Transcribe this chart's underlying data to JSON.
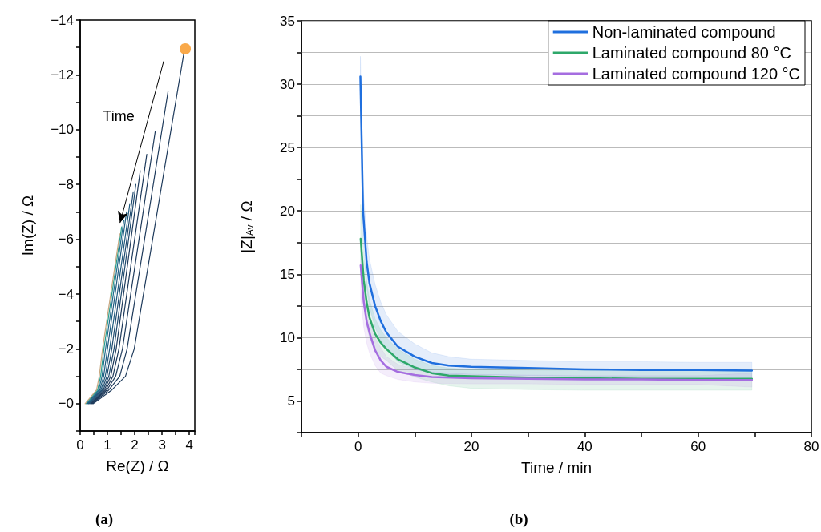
{
  "chart_data": [
    {
      "type": "line",
      "title": "(a)",
      "xlabel": "Re(Z) / Ω",
      "ylabel": "Im(Z) / Ω",
      "xlim": [
        0,
        4.2
      ],
      "ylim": [
        1,
        -14
      ],
      "xticks": [
        0,
        {
          "value": 0.5,
          "label": null
        },
        1,
        {
          "value": 1.5,
          "label": null
        },
        2,
        {
          "value": 2.5,
          "label": null
        },
        3,
        {
          "value": 3.5,
          "label": null
        },
        4
      ],
      "yticks": [
        {
          "value": -14,
          "label": "−14"
        },
        {
          "value": -13,
          "label": null
        },
        {
          "value": -12,
          "label": "−12"
        },
        {
          "value": -11,
          "label": null
        },
        {
          "value": -10,
          "label": "−10"
        },
        {
          "value": -9,
          "label": null
        },
        {
          "value": -8,
          "label": "−8"
        },
        {
          "value": -7,
          "label": null
        },
        {
          "value": -6,
          "label": "−6"
        },
        {
          "value": -5,
          "label": null
        },
        {
          "value": -4,
          "label": "−4"
        },
        {
          "value": -3,
          "label": null
        },
        {
          "value": -2,
          "label": "−2"
        },
        {
          "value": -1,
          "label": null
        },
        {
          "value": 0,
          "label": "−0"
        },
        {
          "value": 1,
          "label": null
        }
      ],
      "grid": false,
      "legend": false,
      "marker": "none",
      "line_style": "solid",
      "annotations": [
        "Time"
      ],
      "series": [
        {
          "color": "#1f3b5c",
          "x": [
            0.48,
            1.16,
            1.66,
            1.98,
            3.8
          ],
          "values": [
            0,
            -0.5,
            -1,
            -2,
            -12.8
          ]
        },
        {
          "color": "#1f3b5c",
          "x": [
            0.45,
            1.05,
            1.45,
            1.72,
            3.22
          ],
          "values": [
            0,
            -0.5,
            -1,
            -2,
            -11.4
          ]
        },
        {
          "color": "#1f3b5c",
          "x": [
            0.42,
            0.98,
            1.3,
            1.55,
            2.75
          ],
          "values": [
            0,
            -0.5,
            -1,
            -2,
            -9.94
          ]
        },
        {
          "color": "#1f3b5c",
          "x": [
            0.4,
            0.93,
            1.2,
            1.42,
            2.44
          ],
          "values": [
            0,
            -0.5,
            -1,
            -2,
            -9.1
          ]
        },
        {
          "color": "#1f3b5c",
          "x": [
            0.38,
            0.88,
            1.12,
            1.32,
            2.2
          ],
          "values": [
            0,
            -0.5,
            -1,
            -2,
            -8.5
          ]
        },
        {
          "color": "#1f4a6e",
          "x": [
            0.35,
            0.84,
            1.05,
            1.24,
            2.04
          ],
          "values": [
            0,
            -0.5,
            -1,
            -2,
            -8.0
          ]
        },
        {
          "color": "#1f4a6e",
          "x": [
            0.32,
            0.8,
            0.98,
            1.16,
            1.94
          ],
          "values": [
            0,
            -0.5,
            -1,
            -2,
            -7.7
          ]
        },
        {
          "color": "#1f5a7e",
          "x": [
            0.3,
            0.76,
            0.92,
            1.08,
            1.82
          ],
          "values": [
            0,
            -0.5,
            -1,
            -2,
            -7.3
          ]
        },
        {
          "color": "#1f5a7e",
          "x": [
            0.27,
            0.72,
            0.86,
            1.0,
            1.7
          ],
          "values": [
            0,
            -0.5,
            -1,
            -2,
            -7.0
          ]
        },
        {
          "color": "#1f6a8a",
          "x": [
            0.24,
            0.68,
            0.8,
            0.93,
            1.6
          ],
          "values": [
            0,
            -0.5,
            -1,
            -2,
            -6.7
          ]
        },
        {
          "color": "#2a9d8f",
          "x": [
            0.21,
            0.64,
            0.75,
            0.87,
            1.52
          ],
          "values": [
            0,
            -0.5,
            -1,
            -2,
            -6.45
          ]
        },
        {
          "color": "#c8a882",
          "x": [
            0.18,
            0.6,
            0.7,
            0.82,
            1.45
          ],
          "values": [
            0,
            -0.5,
            -1,
            -2,
            -6.2
          ]
        },
        {
          "type": "scatter",
          "marker": "circle",
          "color": "#f7941d",
          "x": [
            3.85
          ],
          "values": [
            -12.95
          ]
        }
      ]
    },
    {
      "type": "line",
      "title": "(b)",
      "xlabel": "Time / min",
      "ylabel": "|Z|$_{Av}$ / Ω",
      "xlim": [
        -10,
        80
      ],
      "ylim": [
        2.5,
        35
      ],
      "xticks": [
        {
          "value": -10,
          "label": null
        },
        0,
        {
          "value": 10,
          "label": null
        },
        20,
        {
          "value": 30,
          "label": null
        },
        40,
        {
          "value": 50,
          "label": null
        },
        60,
        {
          "value": 70,
          "label": null
        },
        80
      ],
      "yticks": [
        {
          "value": 2.5,
          "label": null
        },
        5,
        {
          "value": 7.5,
          "label": null
        },
        10,
        {
          "value": 12.5,
          "label": null
        },
        15,
        {
          "value": 17.5,
          "label": null
        },
        20,
        {
          "value": 22.5,
          "label": null
        },
        25,
        {
          "value": 27.5,
          "label": null
        },
        30,
        {
          "value": 32.5,
          "label": null
        },
        35
      ],
      "grid": "y",
      "legend": "top right",
      "marker": "none",
      "line_style": "solid",
      "series": [
        {
          "name": "Non-laminated compound",
          "color": "#1f6fde",
          "x": [
            0.4,
            0.87,
            1.5,
            2,
            3,
            4,
            5,
            7,
            10,
            13,
            16,
            20,
            30,
            40,
            50,
            60,
            69.5
          ],
          "values": [
            30.6,
            20,
            16,
            14.3,
            12.5,
            11.3,
            10.4,
            9.3,
            8.5,
            8.0,
            7.8,
            7.7,
            7.6,
            7.5,
            7.45,
            7.45,
            7.4
          ],
          "upper": [
            32.2,
            22,
            18,
            16.2,
            14.2,
            12.8,
            11.8,
            10.5,
            9.5,
            8.8,
            8.5,
            8.3,
            8.2,
            8.1,
            8.1,
            8.05,
            8.05
          ],
          "lower": [
            29,
            18,
            14,
            12.4,
            10.8,
            9.8,
            9.1,
            8.1,
            7.5,
            7.2,
            7.1,
            7.1,
            7.0,
            6.95,
            6.9,
            6.9,
            6.85
          ]
        },
        {
          "name": "Laminated compound 80 °C",
          "color": "#2ea86a",
          "x": [
            0.45,
            1,
            1.5,
            2,
            3,
            4,
            5,
            7,
            10,
            13,
            16,
            20,
            30,
            40,
            50,
            60,
            69.5
          ],
          "values": [
            17.8,
            14.5,
            12.8,
            11.6,
            10.3,
            9.6,
            9.1,
            8.3,
            7.65,
            7.2,
            7.0,
            6.95,
            6.85,
            6.8,
            6.75,
            6.75,
            6.75
          ],
          "upper": [
            20.5,
            16.5,
            14.5,
            13,
            11.5,
            10.6,
            10,
            9.1,
            8.3,
            7.8,
            7.6,
            7.5,
            7.45,
            7.4,
            7.4,
            7.4,
            7.4
          ],
          "lower": [
            15,
            12.5,
            11,
            10,
            8.9,
            8.5,
            8.2,
            7.4,
            6.9,
            6.5,
            6.2,
            6.0,
            5.9,
            5.85,
            5.85,
            5.85,
            5.85
          ]
        },
        {
          "name": "Laminated compound 120 °C",
          "color": "#a56de0",
          "x": [
            0.45,
            1,
            1.5,
            2,
            3,
            4,
            5,
            7,
            10,
            13,
            20,
            30,
            40,
            50,
            60,
            69.5
          ],
          "values": [
            15.7,
            12.8,
            11.3,
            10.4,
            9.0,
            8.2,
            7.7,
            7.3,
            7.05,
            6.9,
            6.8,
            6.75,
            6.7,
            6.7,
            6.65,
            6.65
          ],
          "upper": [
            17,
            14,
            12.5,
            11.5,
            10,
            9.2,
            8.5,
            7.9,
            7.5,
            7.3,
            7.1,
            7.05,
            7.0,
            7.0,
            7.0,
            7.2
          ],
          "lower": [
            13.2,
            10.8,
            9.6,
            8.8,
            7.8,
            7.2,
            7.0,
            6.7,
            6.5,
            6.4,
            6.35,
            6.35,
            6.3,
            6.3,
            6.3,
            6.1
          ]
        }
      ]
    }
  ]
}
